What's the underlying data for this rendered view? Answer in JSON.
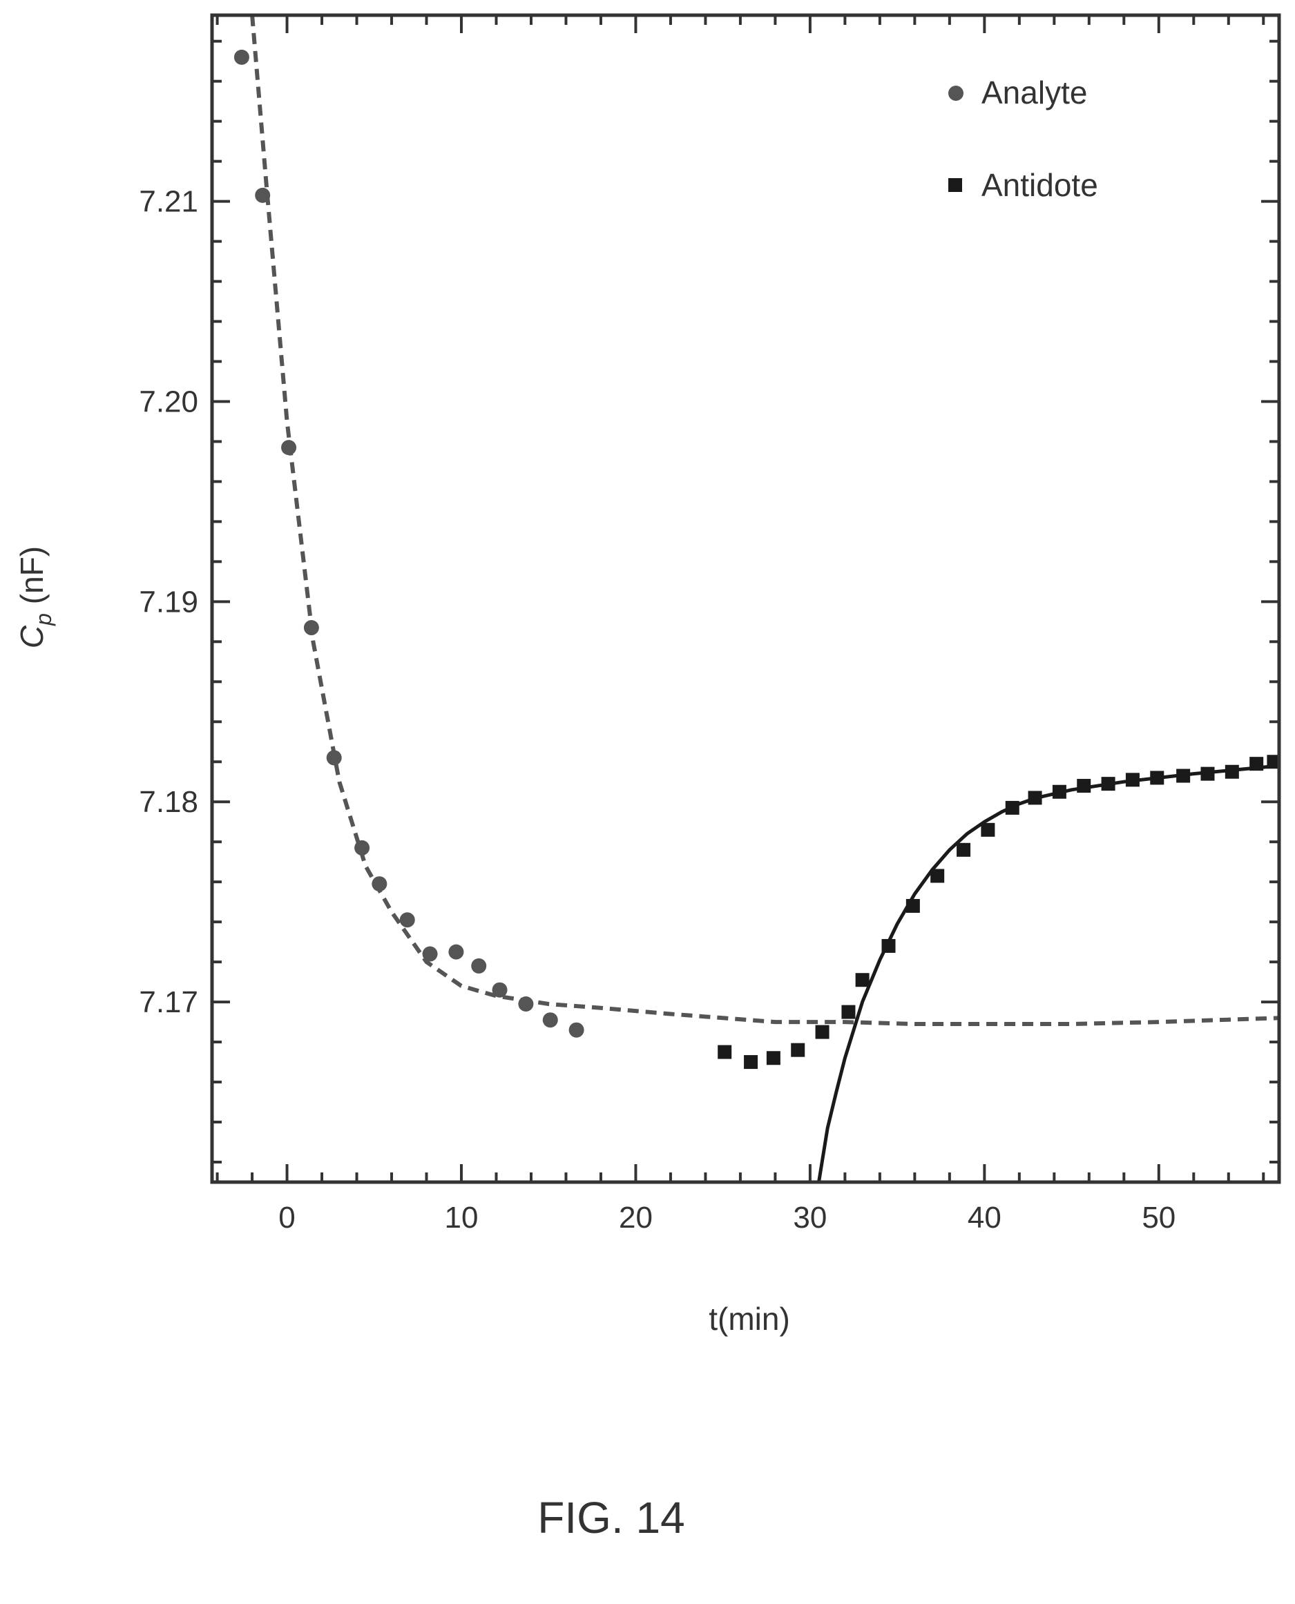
{
  "chart_data": {
    "type": "scatter",
    "xlabel": "t(min)",
    "ylabel_main": "C",
    "ylabel_sub": "p",
    "ylabel_unit": " (nF)",
    "xlim": [
      -4.3,
      56.9
    ],
    "ylim": [
      7.161,
      7.2193
    ],
    "x_ticks": [
      0,
      10,
      20,
      30,
      40,
      50
    ],
    "y_ticks": [
      7.17,
      7.18,
      7.19,
      7.2,
      7.21
    ],
    "y_tick_labels": [
      "7.17",
      "7.18",
      "7.19",
      "7.20",
      "7.21"
    ],
    "grid": false,
    "legend_position": "top-right",
    "series": [
      {
        "name": "Analyte",
        "marker": "circle",
        "color": "#555555",
        "points": [
          [
            -2.6,
            7.2172
          ],
          [
            -1.4,
            7.2103
          ],
          [
            0.1,
            7.1977
          ],
          [
            1.4,
            7.1887
          ],
          [
            2.7,
            7.1822
          ],
          [
            4.3,
            7.1777
          ],
          [
            5.3,
            7.1759
          ],
          [
            6.9,
            7.1741
          ],
          [
            8.2,
            7.1724
          ],
          [
            9.7,
            7.1725
          ],
          [
            11.0,
            7.1718
          ],
          [
            12.2,
            7.1706
          ],
          [
            13.7,
            7.1699
          ],
          [
            15.1,
            7.1691
          ],
          [
            16.6,
            7.1686
          ]
        ]
      },
      {
        "name": "Antidote",
        "marker": "square",
        "color": "#1a1a1a",
        "points": [
          [
            25.1,
            7.1675
          ],
          [
            26.6,
            7.167
          ],
          [
            27.9,
            7.1672
          ],
          [
            29.3,
            7.1676
          ],
          [
            30.7,
            7.1685
          ],
          [
            32.2,
            7.1695
          ],
          [
            33.0,
            7.1711
          ],
          [
            34.5,
            7.1728
          ],
          [
            35.9,
            7.1748
          ],
          [
            37.3,
            7.1763
          ],
          [
            38.8,
            7.1776
          ],
          [
            40.2,
            7.1786
          ],
          [
            41.6,
            7.1797
          ],
          [
            42.9,
            7.1802
          ],
          [
            44.3,
            7.1805
          ],
          [
            45.7,
            7.1808
          ],
          [
            47.1,
            7.1809
          ],
          [
            48.5,
            7.1811
          ],
          [
            49.9,
            7.1812
          ],
          [
            51.4,
            7.1813
          ],
          [
            52.8,
            7.1814
          ],
          [
            54.2,
            7.1815
          ],
          [
            55.6,
            7.1819
          ],
          [
            56.6,
            7.182
          ]
        ]
      }
    ],
    "fits": [
      {
        "style": "dashed",
        "color": "#555555",
        "points": [
          [
            -2.0,
            7.2193
          ],
          [
            -1.2,
            7.211
          ],
          [
            0.0,
            7.199
          ],
          [
            1.5,
            7.188
          ],
          [
            3.0,
            7.181
          ],
          [
            4.5,
            7.1768
          ],
          [
            6.0,
            7.1745
          ],
          [
            8.0,
            7.172
          ],
          [
            10.0,
            7.1708
          ],
          [
            12.0,
            7.1703
          ],
          [
            15.0,
            7.1699
          ],
          [
            18.0,
            7.1697
          ],
          [
            22.0,
            7.1694
          ],
          [
            25.0,
            7.1692
          ],
          [
            28.0,
            7.169
          ],
          [
            32.0,
            7.169
          ],
          [
            36.0,
            7.1689
          ],
          [
            40.0,
            7.1689
          ],
          [
            45.0,
            7.1689
          ],
          [
            50.0,
            7.169
          ],
          [
            56.9,
            7.1692
          ]
        ]
      },
      {
        "style": "solid",
        "color": "#1a1a1a",
        "points": [
          [
            30.5,
            7.161
          ],
          [
            31.0,
            7.1637
          ],
          [
            31.5,
            7.1655
          ],
          [
            32.0,
            7.1672
          ],
          [
            33.0,
            7.17
          ],
          [
            34.0,
            7.1721
          ],
          [
            35.0,
            7.1739
          ],
          [
            36.0,
            7.1754
          ],
          [
            37.0,
            7.1766
          ],
          [
            38.0,
            7.1776
          ],
          [
            39.0,
            7.1784
          ],
          [
            40.0,
            7.179
          ],
          [
            41.0,
            7.1795
          ],
          [
            42.0,
            7.1799
          ],
          [
            43.0,
            7.1802
          ],
          [
            45.0,
            7.1806
          ],
          [
            48.0,
            7.181
          ],
          [
            52.0,
            7.1814
          ],
          [
            56.9,
            7.1818
          ]
        ]
      }
    ]
  },
  "caption": "FIG. 14"
}
